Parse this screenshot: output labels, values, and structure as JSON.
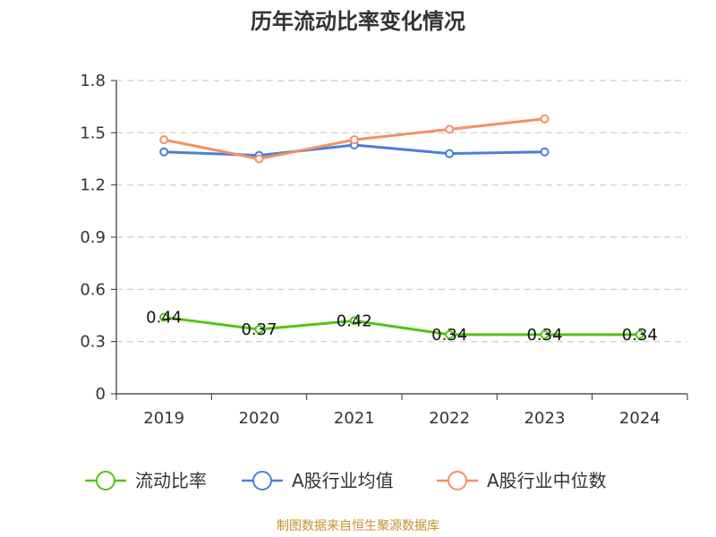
{
  "chart_data": {
    "type": "line",
    "title": "历年流动比率变化情况",
    "xlabel": "",
    "ylabel": "",
    "categories": [
      "2019",
      "2020",
      "2021",
      "2022",
      "2023",
      "2024"
    ],
    "ylim": [
      0,
      1.8
    ],
    "yticks": [
      "0",
      "0.3",
      "0.6",
      "0.9",
      "1.2",
      "1.5",
      "1.8"
    ],
    "grid": true,
    "legend_position": "bottom",
    "series": [
      {
        "name": "流动比率",
        "color": "#52c41a",
        "values": [
          0.44,
          0.37,
          0.42,
          0.34,
          0.34,
          0.34
        ],
        "labels": [
          "0.44",
          "0.37",
          "0.42",
          "0.34",
          "0.34",
          "0.34"
        ]
      },
      {
        "name": "A股行业均值",
        "color": "#4a7fdb",
        "values": [
          1.39,
          1.37,
          1.43,
          1.38,
          1.39,
          null
        ]
      },
      {
        "name": "A股行业中位数",
        "color": "#f59062",
        "values": [
          1.46,
          1.35,
          1.46,
          1.52,
          1.58,
          null
        ]
      }
    ]
  },
  "source": "制图数据来自恒生聚源数据库"
}
